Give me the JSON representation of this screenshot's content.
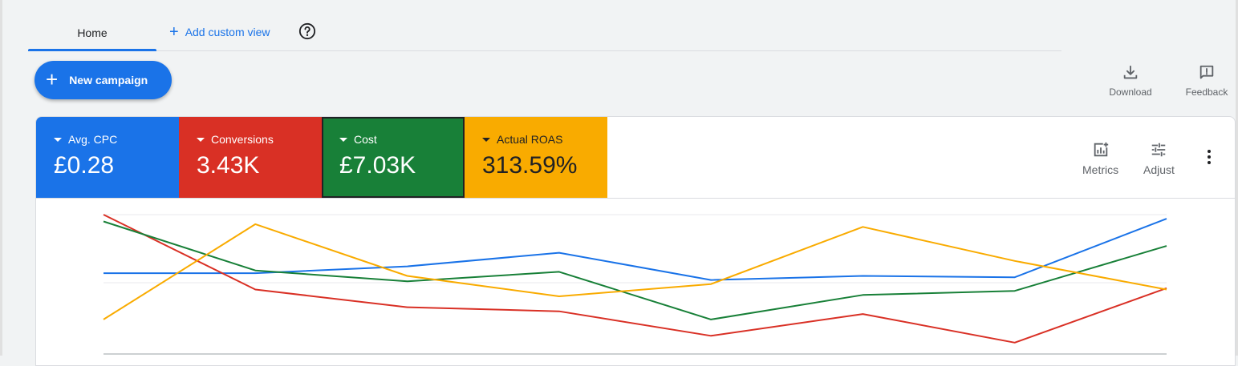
{
  "tabs": {
    "home_label": "Home",
    "add_view_label": "Add custom view"
  },
  "new_campaign_label": "New campaign",
  "actions": {
    "download_label": "Download",
    "feedback_label": "Feedback",
    "metrics_label": "Metrics",
    "adjust_label": "Adjust"
  },
  "metrics": [
    {
      "label": "Avg. CPC",
      "value": "£0.28",
      "color": "#1a73e8"
    },
    {
      "label": "Conversions",
      "value": "3.43K",
      "color": "#d93025"
    },
    {
      "label": "Cost",
      "value": "£7.03K",
      "color": "#188038"
    },
    {
      "label": "Actual ROAS",
      "value": "313.59%",
      "color": "#f9ab00"
    }
  ],
  "chart_data": {
    "type": "line",
    "x": [
      1,
      2,
      3,
      4,
      5,
      6,
      7,
      8
    ],
    "ylim": [
      0,
      100
    ],
    "grid": true,
    "series": [
      {
        "color": "#1a73e8",
        "values": [
          57,
          57,
          62,
          72,
          52,
          55,
          54,
          97
        ]
      },
      {
        "color": "#d93025",
        "values": [
          100,
          45,
          32,
          29,
          11,
          27,
          6,
          46
        ]
      },
      {
        "color": "#188038",
        "values": [
          95,
          59,
          51,
          58,
          23,
          41,
          44,
          77
        ]
      },
      {
        "color": "#f9ab00",
        "values": [
          23,
          93,
          55,
          40,
          49,
          91,
          66,
          45
        ]
      }
    ]
  }
}
